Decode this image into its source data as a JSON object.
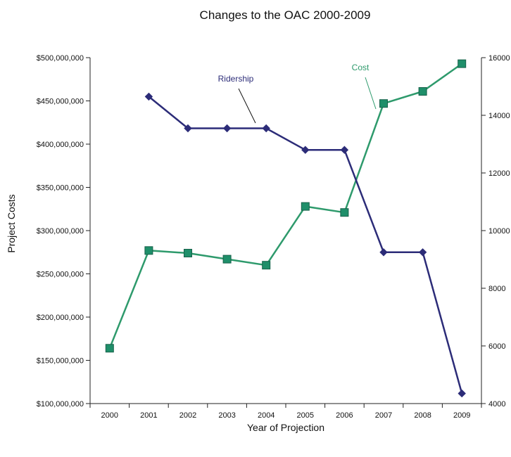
{
  "chart_data": {
    "type": "line",
    "title": "Changes to the OAC 2000-2009",
    "xlabel": "Year of Projection",
    "ylabel": "Project Costs",
    "categories": [
      "2000",
      "2001",
      "2002",
      "2003",
      "2004",
      "2005",
      "2006",
      "2007",
      "2008",
      "2009"
    ],
    "y_left": {
      "ylim": [
        100000000,
        500000000
      ],
      "ticks": [
        "$100,000,000",
        "$150,000,000",
        "$200,000,000",
        "$250,000,000",
        "$300,000,000",
        "$350,000,000",
        "$400,000,000",
        "$450,000,000",
        "$500,000,000"
      ]
    },
    "y_right": {
      "ylim": [
        4000,
        16000
      ],
      "ticks": [
        "4000",
        "6000",
        "8000",
        "10000",
        "12000",
        "14000",
        "16000"
      ]
    },
    "series": [
      {
        "name": "Cost",
        "axis": "left",
        "color": "#2e9a6c",
        "marker": "square",
        "values": [
          164000000,
          277000000,
          274000000,
          267000000,
          260000000,
          328000000,
          321000000,
          447000000,
          461000000,
          493000000
        ]
      },
      {
        "name": "Ridership",
        "axis": "right",
        "color": "#2c2c78",
        "marker": "diamond",
        "values": [
          null,
          14650,
          13550,
          13550,
          13550,
          12800,
          12800,
          9250,
          9250,
          4350
        ]
      }
    ],
    "annotations": [
      {
        "text": "Ridership",
        "series": "Ridership",
        "color": "#2c2c78"
      },
      {
        "text": "Cost",
        "series": "Cost",
        "color": "#2e9a6c"
      }
    ],
    "grid": false,
    "legend": "none"
  }
}
